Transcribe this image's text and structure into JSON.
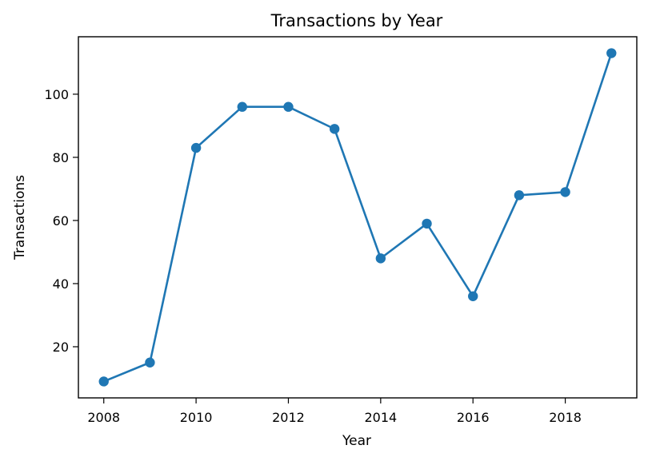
{
  "chart_data": {
    "type": "line",
    "title": "Transactions by Year",
    "xlabel": "Year",
    "ylabel": "Transactions",
    "x": [
      2008,
      2009,
      2010,
      2011,
      2012,
      2013,
      2014,
      2015,
      2016,
      2017,
      2018,
      2019
    ],
    "series": [
      {
        "values": [
          9,
          15,
          83,
          96,
          96,
          89,
          48,
          59,
          36,
          68,
          69,
          113
        ],
        "color": "#1f77b4",
        "marker": "circle"
      }
    ],
    "xlim": [
      2007.45,
      2019.55
    ],
    "ylim": [
      3.8,
      118.2
    ],
    "xticks": [
      "2008",
      "2010",
      "2012",
      "2014",
      "2016",
      "2018"
    ],
    "yticks": [
      "20",
      "40",
      "60",
      "80",
      "100"
    ],
    "grid": false,
    "legend": "none"
  }
}
